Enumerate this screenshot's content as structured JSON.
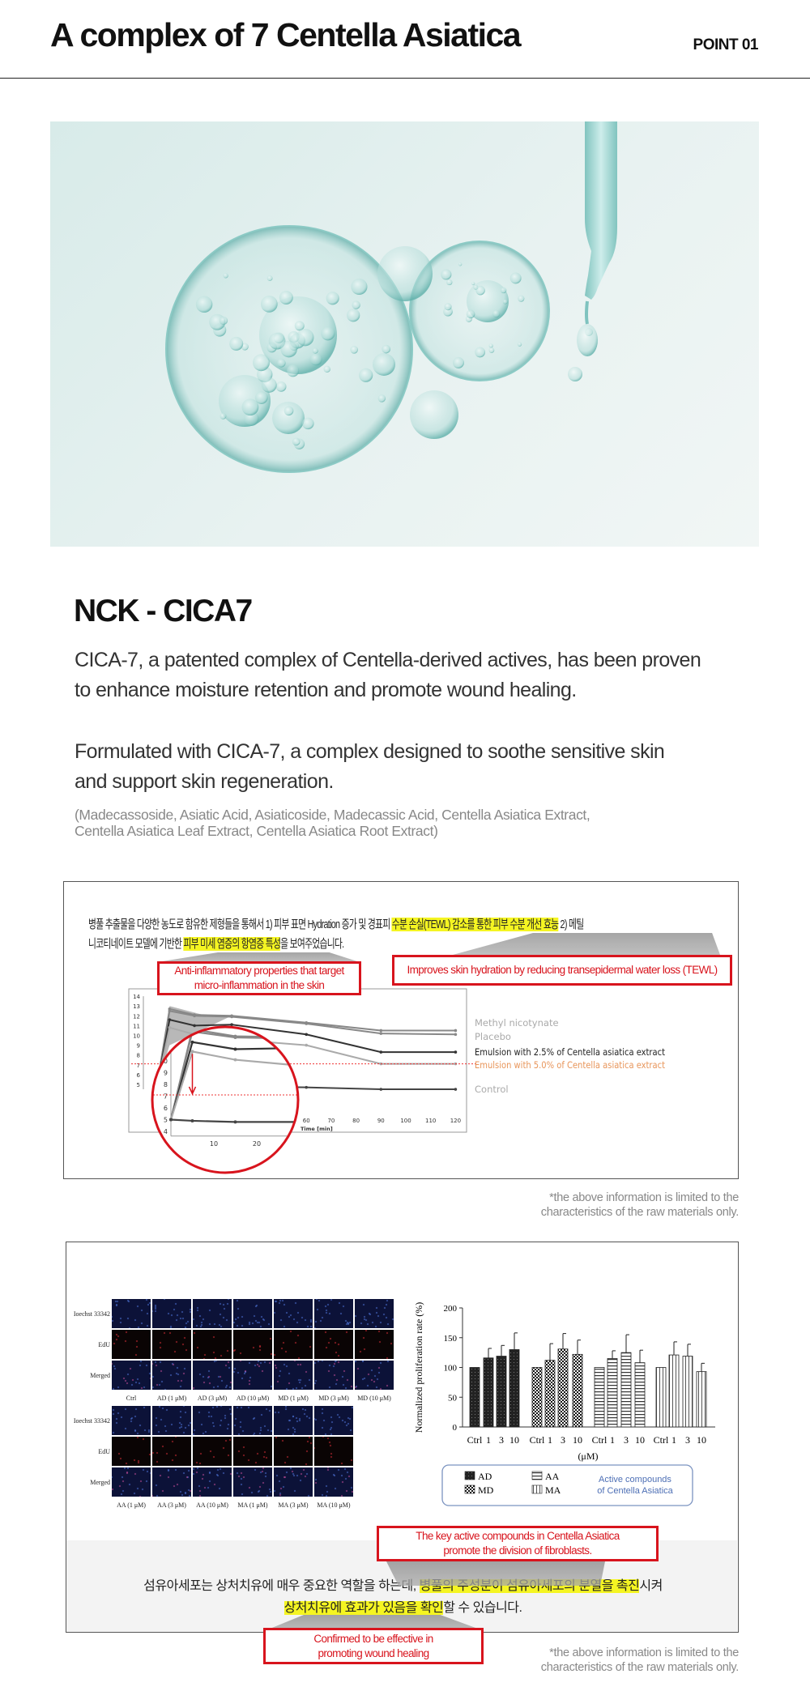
{
  "header": {
    "title": "A complex of 7 Centella Asiatica",
    "point": "POINT 01"
  },
  "hero": {
    "image": "bubbles-and-dropper",
    "colors": {
      "bg": "#dfeeed",
      "bubble": "#7fc3bf"
    }
  },
  "product": {
    "name": "NCK - CICA7",
    "para1": [
      "CICA-7, a patented complex of Centella-derived actives, has been proven",
      "to enhance moisture retention and promote wound healing."
    ],
    "para2": [
      "Formulated with CICA-7, a complex designed to soothe sensitive skin",
      "and support skin regeneration."
    ],
    "ingredients": [
      "(Madecassoside, Asiatic Acid, Asiaticoside, Madecassic Acid, Centella Asiatica Extract,",
      "Centella Asiatica Leaf Extract, Centella Asiatica Root Extract)"
    ]
  },
  "study1": {
    "kr_line1": [
      {
        "t": "병풀 추출물을 다양한 농도로 함유한 제형들을 통해서 1) 피부 표면 Hydration 증가 및 경표피 ",
        "hl": false
      },
      {
        "t": "수분 손실(TEWL) 감소를 통한 피부 수분 개선 효능",
        "hl": true
      },
      {
        "t": " 2) 메틸",
        "hl": false
      }
    ],
    "kr_line2": [
      {
        "t": "니코티네이트 모델에 기반한 ",
        "hl": false
      },
      {
        "t": "피부 미세 염증의 항염증 특성",
        "hl": true
      },
      {
        "t": "을 보여주었습니다.",
        "hl": false
      }
    ],
    "callout_tewl": "Improves skin hydration by reducing transepidermal water loss (TEWL)",
    "callout_anti": [
      "Anti-inflammatory properties that target",
      "micro-inflammation in the skin"
    ],
    "footnote": [
      "*the above information is limited to the",
      "characteristics of the raw materials only."
    ]
  },
  "study2": {
    "grid1": {
      "rows": [
        "Ioechst 33342",
        "EdU",
        "Merged"
      ],
      "cols": [
        "Ctrl",
        "AD (1 μM)",
        "AD (3 μM)",
        "AD (10 μM)",
        "MD (1 μM)",
        "MD (3 μM)",
        "MD (10 μM)"
      ]
    },
    "grid2": {
      "rows": [
        "Ioechst 33342",
        "EdU",
        "Merged"
      ],
      "cols": [
        "AA (1 μM)",
        "AA (3 μM)",
        "AA (10 μM)",
        "MA (1 μM)",
        "MA (3 μM)",
        "MA (10 μM)"
      ]
    },
    "legend_note": [
      "Active compounds",
      "of Centella Asiatica"
    ],
    "callout_top": [
      "The key active compounds in Centella Asiatica",
      "promote the division of fibroblasts."
    ],
    "kr_line1": [
      {
        "t": "섬유아세포는 상처치유에 매우 중요한 역할을 하는데, ",
        "hl": false
      },
      {
        "t": "병풀의 주성분이 섬유아세포의 분열을 촉진",
        "hl": true
      },
      {
        "t": "시켜",
        "hl": false
      }
    ],
    "kr_line2": [
      {
        "t": "상처치유에 효과가 있음을 확인",
        "hl": true
      },
      {
        "t": "할 수 있습니다.",
        "hl": false
      }
    ],
    "callout_bottom": [
      "Confirmed to be effective in",
      "promoting wound healing"
    ],
    "footnote": [
      "*the above information is limited to the",
      "characteristics of the raw materials only."
    ]
  },
  "chart_data": [
    {
      "type": "line",
      "xlabel": "Time [min]",
      "x": [
        0,
        5,
        15,
        30,
        60,
        90,
        120
      ],
      "xticks": [
        60,
        70,
        80,
        90,
        100,
        110,
        120
      ],
      "yticks": [
        5,
        6,
        7,
        8,
        9,
        10,
        11,
        12,
        13,
        14
      ],
      "ylim": [
        4,
        14
      ],
      "series": [
        {
          "name": "Methyl nicotynate",
          "color": "#999999",
          "values": [
            5,
            12.7,
            12.1,
            12.0,
            11.3,
            10.5,
            10.5
          ]
        },
        {
          "name": "Placebo",
          "color": "#999999",
          "values": [
            5,
            12.5,
            12.0,
            11.9,
            11.2,
            10.2,
            10.1
          ]
        },
        {
          "name": "Emulsion with 2.5% of Centella asiatica extract",
          "color": "#222222",
          "values": [
            5,
            11.6,
            11.0,
            11.1,
            10.1,
            8.3,
            8.3
          ]
        },
        {
          "name": "Emulsion with 5.0% of Centella asiatica extract",
          "color": "#e8955a",
          "values": [
            5,
            10.8,
            10.1,
            9.6,
            9.0,
            7.1,
            7.1
          ]
        },
        {
          "name": "Control",
          "color": "#999999",
          "values": [
            5,
            4.9,
            4.8,
            4.8,
            4.7,
            4.5,
            4.5
          ]
        }
      ],
      "reference_line": 7.1
    },
    {
      "type": "bar",
      "ylabel": "Normalized proliferation rate (%)",
      "xlabel": "(μM)",
      "ylim": [
        0,
        200
      ],
      "yticks": [
        0,
        50,
        100,
        150,
        200
      ],
      "categories": [
        "Ctrl",
        "1",
        "3",
        "10"
      ],
      "series": [
        {
          "name": "AD",
          "pattern": "dense-dark",
          "values": [
            100,
            116,
            119,
            130
          ],
          "errors": [
            0,
            16,
            18,
            28
          ]
        },
        {
          "name": "MD",
          "pattern": "checker",
          "values": [
            100,
            112,
            131,
            122
          ],
          "errors": [
            0,
            28,
            26,
            24
          ]
        },
        {
          "name": "AA",
          "pattern": "horizontal-lines",
          "values": [
            100,
            115,
            125,
            108
          ],
          "errors": [
            0,
            13,
            30,
            21
          ]
        },
        {
          "name": "MA",
          "pattern": "vertical-lines",
          "values": [
            100,
            121,
            119,
            93
          ],
          "errors": [
            0,
            22,
            20,
            14
          ]
        }
      ]
    }
  ]
}
